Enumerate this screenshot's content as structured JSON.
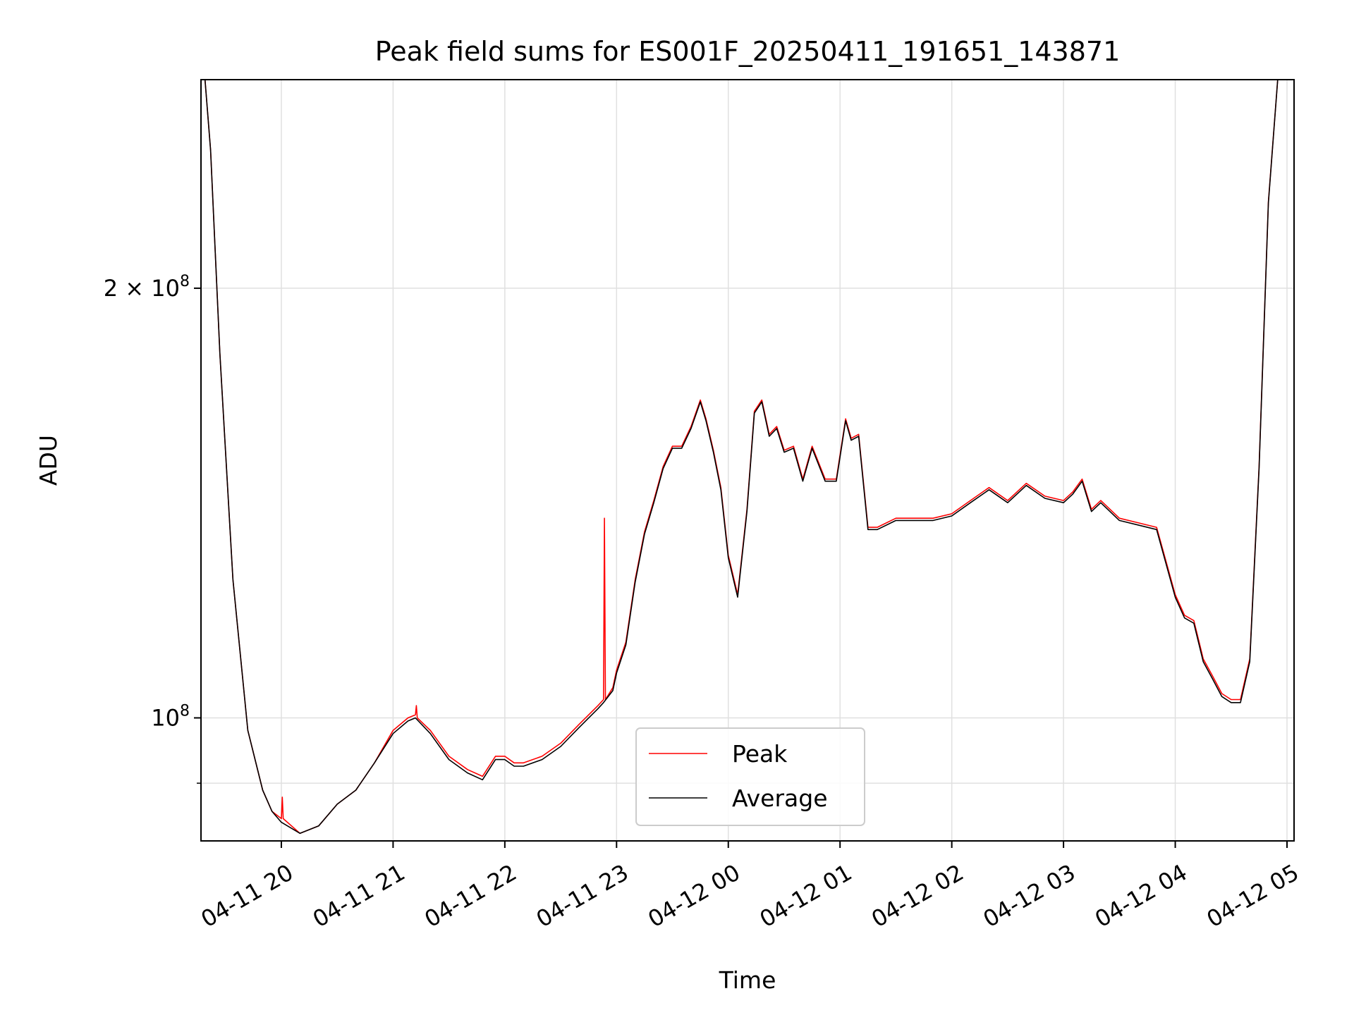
{
  "chart_data": {
    "type": "line",
    "title": "Peak field sums for ES001F_20250411_191651_143871",
    "xlabel": "Time",
    "ylabel": "ADU",
    "y_scale": "log",
    "grid": true,
    "legend_placement": "lower-center",
    "x_range": [
      "2025-04-11 19:16:51",
      "2025-04-12 05:00:00"
    ],
    "ylim": [
      82000000,
      280000000
    ],
    "x_ticks": [
      {
        "t": "2025-04-11 20:00",
        "label": "04-11 20"
      },
      {
        "t": "2025-04-11 21:00",
        "label": "04-11 21"
      },
      {
        "t": "2025-04-11 22:00",
        "label": "04-11 22"
      },
      {
        "t": "2025-04-11 23:00",
        "label": "04-11 23"
      },
      {
        "t": "2025-04-12 00:00",
        "label": "04-12 00"
      },
      {
        "t": "2025-04-12 01:00",
        "label": "04-12 01"
      },
      {
        "t": "2025-04-12 02:00",
        "label": "04-12 02"
      },
      {
        "t": "2025-04-12 03:00",
        "label": "04-12 03"
      },
      {
        "t": "2025-04-12 04:00",
        "label": "04-12 04"
      },
      {
        "t": "2025-04-12 05:00",
        "label": "04-12 05"
      }
    ],
    "y_ticks": [
      {
        "value": 100000000,
        "base": "10",
        "exp": "8",
        "mult": ""
      },
      {
        "value": 200000000,
        "base": "10",
        "exp": "8",
        "mult": "2 × "
      }
    ],
    "y_minor_ticks": [
      90000000
    ],
    "series": [
      {
        "name": "Peak",
        "color": "#ff0000",
        "points": [
          [
            "2025-04-11 19:16:51",
            280000000
          ],
          [
            "2025-04-11 19:19",
            280000000
          ],
          [
            "2025-04-11 19:22",
            250000000
          ],
          [
            "2025-04-11 19:27",
            180000000
          ],
          [
            "2025-04-11 19:34",
            125000000
          ],
          [
            "2025-04-11 19:42",
            98000000
          ],
          [
            "2025-04-11 19:50",
            89000000
          ],
          [
            "2025-04-11 19:55",
            86000000
          ],
          [
            "2025-04-11 20:00",
            85000000
          ],
          [
            "2025-04-11 20:00:30",
            88000000
          ],
          [
            "2025-04-11 20:01",
            85000000
          ],
          [
            "2025-04-11 20:10",
            83000000
          ],
          [
            "2025-04-11 20:20",
            84000000
          ],
          [
            "2025-04-11 20:30",
            87000000
          ],
          [
            "2025-04-11 20:40",
            89000000
          ],
          [
            "2025-04-11 20:50",
            93000000
          ],
          [
            "2025-04-11 21:00",
            98000000
          ],
          [
            "2025-04-11 21:08",
            100000000
          ],
          [
            "2025-04-11 21:12",
            100500000
          ],
          [
            "2025-04-11 21:12:30",
            102000000
          ],
          [
            "2025-04-11 21:13",
            100000000
          ],
          [
            "2025-04-11 21:20",
            98000000
          ],
          [
            "2025-04-11 21:30",
            94000000
          ],
          [
            "2025-04-11 21:40",
            92000000
          ],
          [
            "2025-04-11 21:48",
            91000000
          ],
          [
            "2025-04-11 21:55",
            94000000
          ],
          [
            "2025-04-11 22:00",
            94000000
          ],
          [
            "2025-04-11 22:05",
            93000000
          ],
          [
            "2025-04-11 22:10",
            93000000
          ],
          [
            "2025-04-11 22:20",
            94000000
          ],
          [
            "2025-04-11 22:30",
            96000000
          ],
          [
            "2025-04-11 22:40",
            99000000
          ],
          [
            "2025-04-11 22:50",
            102000000
          ],
          [
            "2025-04-11 22:53",
            103000000
          ],
          [
            "2025-04-11 22:53:30",
            138000000
          ],
          [
            "2025-04-11 22:54",
            103000000
          ],
          [
            "2025-04-11 22:58",
            105000000
          ],
          [
            "2025-04-11 23:00",
            108000000
          ],
          [
            "2025-04-11 23:05",
            113000000
          ],
          [
            "2025-04-11 23:10",
            125000000
          ],
          [
            "2025-04-11 23:15",
            135000000
          ],
          [
            "2025-04-11 23:20",
            142000000
          ],
          [
            "2025-04-11 23:25",
            150000000
          ],
          [
            "2025-04-11 23:30",
            155000000
          ],
          [
            "2025-04-11 23:35",
            155000000
          ],
          [
            "2025-04-11 23:40",
            160000000
          ],
          [
            "2025-04-11 23:45",
            167000000
          ],
          [
            "2025-04-11 23:48",
            162000000
          ],
          [
            "2025-04-11 23:52",
            154000000
          ],
          [
            "2025-04-11 23:56",
            145000000
          ],
          [
            "2025-04-12 00:00",
            130000000
          ],
          [
            "2025-04-12 00:05",
            122000000
          ],
          [
            "2025-04-12 00:10",
            140000000
          ],
          [
            "2025-04-12 00:14",
            164000000
          ],
          [
            "2025-04-12 00:18",
            167000000
          ],
          [
            "2025-04-12 00:22",
            158000000
          ],
          [
            "2025-04-12 00:26",
            160000000
          ],
          [
            "2025-04-12 00:30",
            154000000
          ],
          [
            "2025-04-12 00:35",
            155000000
          ],
          [
            "2025-04-12 00:40",
            147000000
          ],
          [
            "2025-04-12 00:45",
            155000000
          ],
          [
            "2025-04-12 00:52",
            147000000
          ],
          [
            "2025-04-12 00:58",
            147000000
          ],
          [
            "2025-04-12 01:03",
            162000000
          ],
          [
            "2025-04-12 01:06",
            157000000
          ],
          [
            "2025-04-12 01:10",
            158000000
          ],
          [
            "2025-04-12 01:15",
            136000000
          ],
          [
            "2025-04-12 01:20",
            136000000
          ],
          [
            "2025-04-12 01:30",
            138000000
          ],
          [
            "2025-04-12 01:40",
            138000000
          ],
          [
            "2025-04-12 01:50",
            138000000
          ],
          [
            "2025-04-12 02:00",
            139000000
          ],
          [
            "2025-04-12 02:10",
            142000000
          ],
          [
            "2025-04-12 02:20",
            145000000
          ],
          [
            "2025-04-12 02:30",
            142000000
          ],
          [
            "2025-04-12 02:40",
            146000000
          ],
          [
            "2025-04-12 02:50",
            143000000
          ],
          [
            "2025-04-12 03:00",
            142000000
          ],
          [
            "2025-04-12 03:05",
            144000000
          ],
          [
            "2025-04-12 03:10",
            147000000
          ],
          [
            "2025-04-12 03:15",
            140000000
          ],
          [
            "2025-04-12 03:20",
            142000000
          ],
          [
            "2025-04-12 03:30",
            138000000
          ],
          [
            "2025-04-12 03:40",
            137000000
          ],
          [
            "2025-04-12 03:50",
            136000000
          ],
          [
            "2025-04-12 04:00",
            122000000
          ],
          [
            "2025-04-12 04:05",
            118000000
          ],
          [
            "2025-04-12 04:10",
            117000000
          ],
          [
            "2025-04-12 04:15",
            110000000
          ],
          [
            "2025-04-12 04:20",
            107000000
          ],
          [
            "2025-04-12 04:25",
            104000000
          ],
          [
            "2025-04-12 04:30",
            103000000
          ],
          [
            "2025-04-12 04:35",
            103000000
          ],
          [
            "2025-04-12 04:40",
            110000000
          ],
          [
            "2025-04-12 04:45",
            150000000
          ],
          [
            "2025-04-12 04:50",
            230000000
          ],
          [
            "2025-04-12 04:55",
            280000000
          ],
          [
            "2025-04-12 05:00",
            280000000
          ]
        ]
      },
      {
        "name": "Average",
        "color": "#000000",
        "points": [
          [
            "2025-04-11 19:16:51",
            280000000
          ],
          [
            "2025-04-11 19:19",
            280000000
          ],
          [
            "2025-04-11 19:22",
            250000000
          ],
          [
            "2025-04-11 19:27",
            180000000
          ],
          [
            "2025-04-11 19:34",
            125000000
          ],
          [
            "2025-04-11 19:42",
            98000000
          ],
          [
            "2025-04-11 19:50",
            89000000
          ],
          [
            "2025-04-11 19:55",
            86000000
          ],
          [
            "2025-04-11 20:00",
            84500000
          ],
          [
            "2025-04-11 20:10",
            83000000
          ],
          [
            "2025-04-11 20:20",
            84000000
          ],
          [
            "2025-04-11 20:30",
            87000000
          ],
          [
            "2025-04-11 20:40",
            89000000
          ],
          [
            "2025-04-11 20:50",
            93000000
          ],
          [
            "2025-04-11 21:00",
            97500000
          ],
          [
            "2025-04-11 21:08",
            99500000
          ],
          [
            "2025-04-11 21:12",
            100000000
          ],
          [
            "2025-04-11 21:20",
            97500000
          ],
          [
            "2025-04-11 21:30",
            93500000
          ],
          [
            "2025-04-11 21:40",
            91500000
          ],
          [
            "2025-04-11 21:48",
            90500000
          ],
          [
            "2025-04-11 21:55",
            93500000
          ],
          [
            "2025-04-11 22:00",
            93500000
          ],
          [
            "2025-04-11 22:05",
            92500000
          ],
          [
            "2025-04-11 22:10",
            92500000
          ],
          [
            "2025-04-11 22:20",
            93500000
          ],
          [
            "2025-04-11 22:30",
            95500000
          ],
          [
            "2025-04-11 22:40",
            98500000
          ],
          [
            "2025-04-11 22:50",
            101500000
          ],
          [
            "2025-04-11 22:53",
            102500000
          ],
          [
            "2025-04-11 22:58",
            104500000
          ],
          [
            "2025-04-11 23:00",
            107500000
          ],
          [
            "2025-04-11 23:05",
            112500000
          ],
          [
            "2025-04-11 23:10",
            124500000
          ],
          [
            "2025-04-11 23:15",
            134500000
          ],
          [
            "2025-04-11 23:20",
            141500000
          ],
          [
            "2025-04-11 23:25",
            149500000
          ],
          [
            "2025-04-11 23:30",
            154500000
          ],
          [
            "2025-04-11 23:35",
            154500000
          ],
          [
            "2025-04-11 23:40",
            159500000
          ],
          [
            "2025-04-11 23:45",
            166500000
          ],
          [
            "2025-04-11 23:48",
            161500000
          ],
          [
            "2025-04-11 23:52",
            153500000
          ],
          [
            "2025-04-11 23:56",
            144500000
          ],
          [
            "2025-04-12 00:00",
            129500000
          ],
          [
            "2025-04-12 00:05",
            121500000
          ],
          [
            "2025-04-12 00:10",
            139500000
          ],
          [
            "2025-04-12 00:14",
            163500000
          ],
          [
            "2025-04-12 00:18",
            166500000
          ],
          [
            "2025-04-12 00:22",
            157500000
          ],
          [
            "2025-04-12 00:26",
            159500000
          ],
          [
            "2025-04-12 00:30",
            153500000
          ],
          [
            "2025-04-12 00:35",
            154500000
          ],
          [
            "2025-04-12 00:40",
            146500000
          ],
          [
            "2025-04-12 00:45",
            154500000
          ],
          [
            "2025-04-12 00:52",
            146500000
          ],
          [
            "2025-04-12 00:58",
            146500000
          ],
          [
            "2025-04-12 01:03",
            161500000
          ],
          [
            "2025-04-12 01:06",
            156500000
          ],
          [
            "2025-04-12 01:10",
            157500000
          ],
          [
            "2025-04-12 01:15",
            135500000
          ],
          [
            "2025-04-12 01:20",
            135500000
          ],
          [
            "2025-04-12 01:30",
            137500000
          ],
          [
            "2025-04-12 01:40",
            137500000
          ],
          [
            "2025-04-12 01:50",
            137500000
          ],
          [
            "2025-04-12 02:00",
            138500000
          ],
          [
            "2025-04-12 02:10",
            141500000
          ],
          [
            "2025-04-12 02:20",
            144500000
          ],
          [
            "2025-04-12 02:30",
            141500000
          ],
          [
            "2025-04-12 02:40",
            145500000
          ],
          [
            "2025-04-12 02:50",
            142500000
          ],
          [
            "2025-04-12 03:00",
            141500000
          ],
          [
            "2025-04-12 03:05",
            143500000
          ],
          [
            "2025-04-12 03:10",
            146500000
          ],
          [
            "2025-04-12 03:15",
            139500000
          ],
          [
            "2025-04-12 03:20",
            141500000
          ],
          [
            "2025-04-12 03:30",
            137500000
          ],
          [
            "2025-04-12 03:40",
            136500000
          ],
          [
            "2025-04-12 03:50",
            135500000
          ],
          [
            "2025-04-12 04:00",
            121500000
          ],
          [
            "2025-04-12 04:05",
            117500000
          ],
          [
            "2025-04-12 04:10",
            116500000
          ],
          [
            "2025-04-12 04:15",
            109500000
          ],
          [
            "2025-04-12 04:20",
            106500000
          ],
          [
            "2025-04-12 04:25",
            103500000
          ],
          [
            "2025-04-12 04:30",
            102500000
          ],
          [
            "2025-04-12 04:35",
            102500000
          ],
          [
            "2025-04-12 04:40",
            109500000
          ],
          [
            "2025-04-12 04:45",
            149500000
          ],
          [
            "2025-04-12 04:50",
            229500000
          ],
          [
            "2025-04-12 04:55",
            280000000
          ],
          [
            "2025-04-12 05:00",
            280000000
          ]
        ]
      }
    ]
  },
  "colors": {
    "grid": "#e0e0e0",
    "axis": "#000000",
    "background": "#ffffff"
  }
}
